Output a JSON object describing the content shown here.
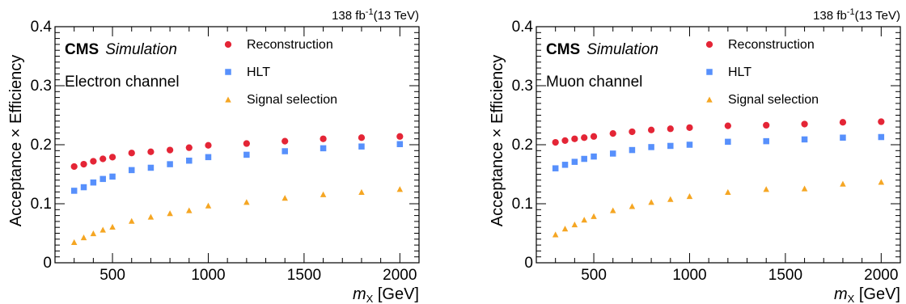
{
  "chart_data": [
    {
      "type": "scatter",
      "lumi": "138 fb",
      "lumi_exp": "-1",
      "energy": "(13 TeV)",
      "experiment": "CMS",
      "tag": "Simulation",
      "channel": "Electron channel",
      "ylabel": "Acceptance × Efficiency",
      "xlabel_var": "m",
      "xlabel_sub": "X",
      "xlabel_unit": "[GeV]",
      "xlim": [
        200,
        2100
      ],
      "ylim": [
        0,
        0.4
      ],
      "xticks": [
        500,
        1000,
        1500,
        2000
      ],
      "xtick_labels": [
        "500",
        "1000",
        "1500",
        "2000"
      ],
      "yticks": [
        0,
        0.1,
        0.2,
        0.3,
        0.4
      ],
      "ytick_labels": [
        "0",
        "0.1",
        "0.2",
        "0.3",
        "0.4"
      ],
      "legend_position": "top-right",
      "series": [
        {
          "name": "Reconstruction",
          "marker": "circle",
          "color": "#e42536",
          "x": [
            300,
            350,
            400,
            450,
            500,
            600,
            700,
            800,
            900,
            1000,
            1200,
            1400,
            1600,
            1800,
            2000
          ],
          "y": [
            0.163,
            0.167,
            0.172,
            0.176,
            0.179,
            0.186,
            0.188,
            0.191,
            0.195,
            0.199,
            0.202,
            0.206,
            0.21,
            0.212,
            0.214
          ]
        },
        {
          "name": "HLT",
          "marker": "square",
          "color": "#5790fc",
          "x": [
            300,
            350,
            400,
            450,
            500,
            600,
            700,
            800,
            900,
            1000,
            1200,
            1400,
            1600,
            1800,
            2000
          ],
          "y": [
            0.122,
            0.128,
            0.136,
            0.142,
            0.146,
            0.157,
            0.161,
            0.167,
            0.173,
            0.179,
            0.183,
            0.189,
            0.194,
            0.197,
            0.201
          ]
        },
        {
          "name": "Signal selection",
          "marker": "triangle",
          "color": "#f5a623",
          "x": [
            300,
            350,
            400,
            450,
            500,
            600,
            700,
            800,
            900,
            1000,
            1200,
            1400,
            1600,
            1800,
            2000
          ],
          "y": [
            0.035,
            0.043,
            0.05,
            0.056,
            0.061,
            0.071,
            0.078,
            0.084,
            0.089,
            0.097,
            0.103,
            0.11,
            0.116,
            0.12,
            0.125
          ]
        }
      ]
    },
    {
      "type": "scatter",
      "lumi": "138 fb",
      "lumi_exp": "-1",
      "energy": "(13 TeV)",
      "experiment": "CMS",
      "tag": "Simulation",
      "channel": "Muon channel",
      "ylabel": "Acceptance × Efficiency",
      "xlabel_var": "m",
      "xlabel_sub": "X",
      "xlabel_unit": "[GeV]",
      "xlim": [
        200,
        2100
      ],
      "ylim": [
        0,
        0.4
      ],
      "xticks": [
        500,
        1000,
        1500,
        2000
      ],
      "xtick_labels": [
        "500",
        "1000",
        "1500",
        "2000"
      ],
      "yticks": [
        0,
        0.1,
        0.2,
        0.3,
        0.4
      ],
      "ytick_labels": [
        "0",
        "0.1",
        "0.2",
        "0.3",
        "0.4"
      ],
      "legend_position": "top-right",
      "series": [
        {
          "name": "Reconstruction",
          "marker": "circle",
          "color": "#e42536",
          "x": [
            300,
            350,
            400,
            450,
            500,
            600,
            700,
            800,
            900,
            1000,
            1200,
            1400,
            1600,
            1800,
            2000
          ],
          "y": [
            0.204,
            0.207,
            0.21,
            0.212,
            0.214,
            0.219,
            0.222,
            0.225,
            0.227,
            0.229,
            0.232,
            0.233,
            0.235,
            0.238,
            0.239
          ]
        },
        {
          "name": "HLT",
          "marker": "square",
          "color": "#5790fc",
          "x": [
            300,
            350,
            400,
            450,
            500,
            600,
            700,
            800,
            900,
            1000,
            1200,
            1400,
            1600,
            1800,
            2000
          ],
          "y": [
            0.16,
            0.166,
            0.171,
            0.176,
            0.18,
            0.185,
            0.191,
            0.196,
            0.198,
            0.2,
            0.205,
            0.206,
            0.209,
            0.212,
            0.213
          ]
        },
        {
          "name": "Signal selection",
          "marker": "triangle",
          "color": "#f5a623",
          "x": [
            300,
            350,
            400,
            450,
            500,
            600,
            700,
            800,
            900,
            1000,
            1200,
            1400,
            1600,
            1800,
            2000
          ],
          "y": [
            0.048,
            0.058,
            0.065,
            0.073,
            0.079,
            0.089,
            0.096,
            0.103,
            0.108,
            0.113,
            0.12,
            0.125,
            0.126,
            0.134,
            0.137
          ]
        }
      ]
    }
  ]
}
